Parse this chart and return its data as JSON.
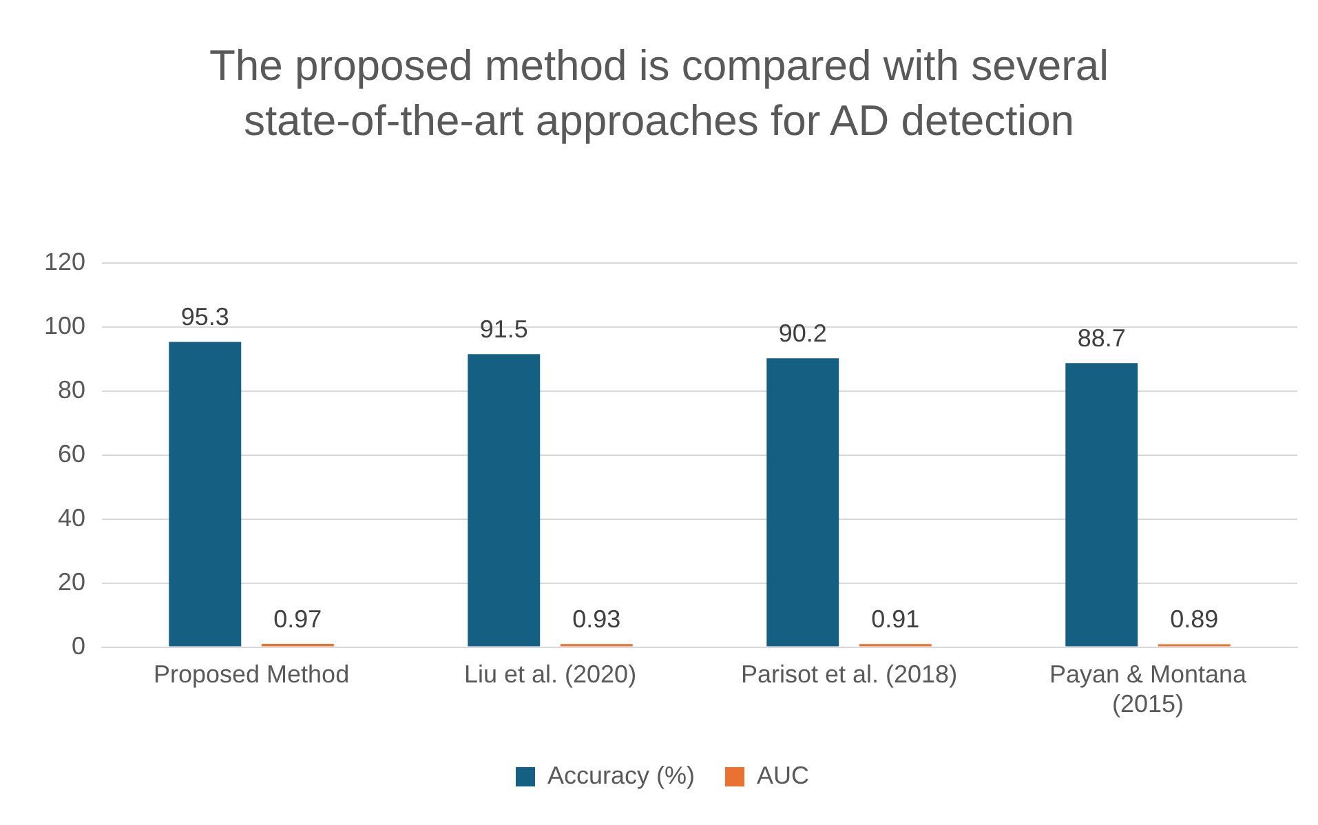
{
  "chart_data": {
    "type": "bar",
    "title": "The proposed method is compared with several state-of-the-art approaches for AD detection",
    "categories": [
      "Proposed Method",
      "Liu et al. (2020)",
      "Parisot et al. (2018)",
      "Payan & Montana (2015)"
    ],
    "series": [
      {
        "name": "Accuracy (%)",
        "color": "#156082",
        "values": [
          95.3,
          91.5,
          90.2,
          88.7
        ]
      },
      {
        "name": "AUC",
        "color": "#e97132",
        "values": [
          0.97,
          0.93,
          0.91,
          0.89
        ]
      }
    ],
    "ylim": [
      0,
      120
    ],
    "yticks": [
      0,
      20,
      40,
      60,
      80,
      100,
      120
    ],
    "grid": "y",
    "legend": "bottom",
    "data_labels": true
  }
}
